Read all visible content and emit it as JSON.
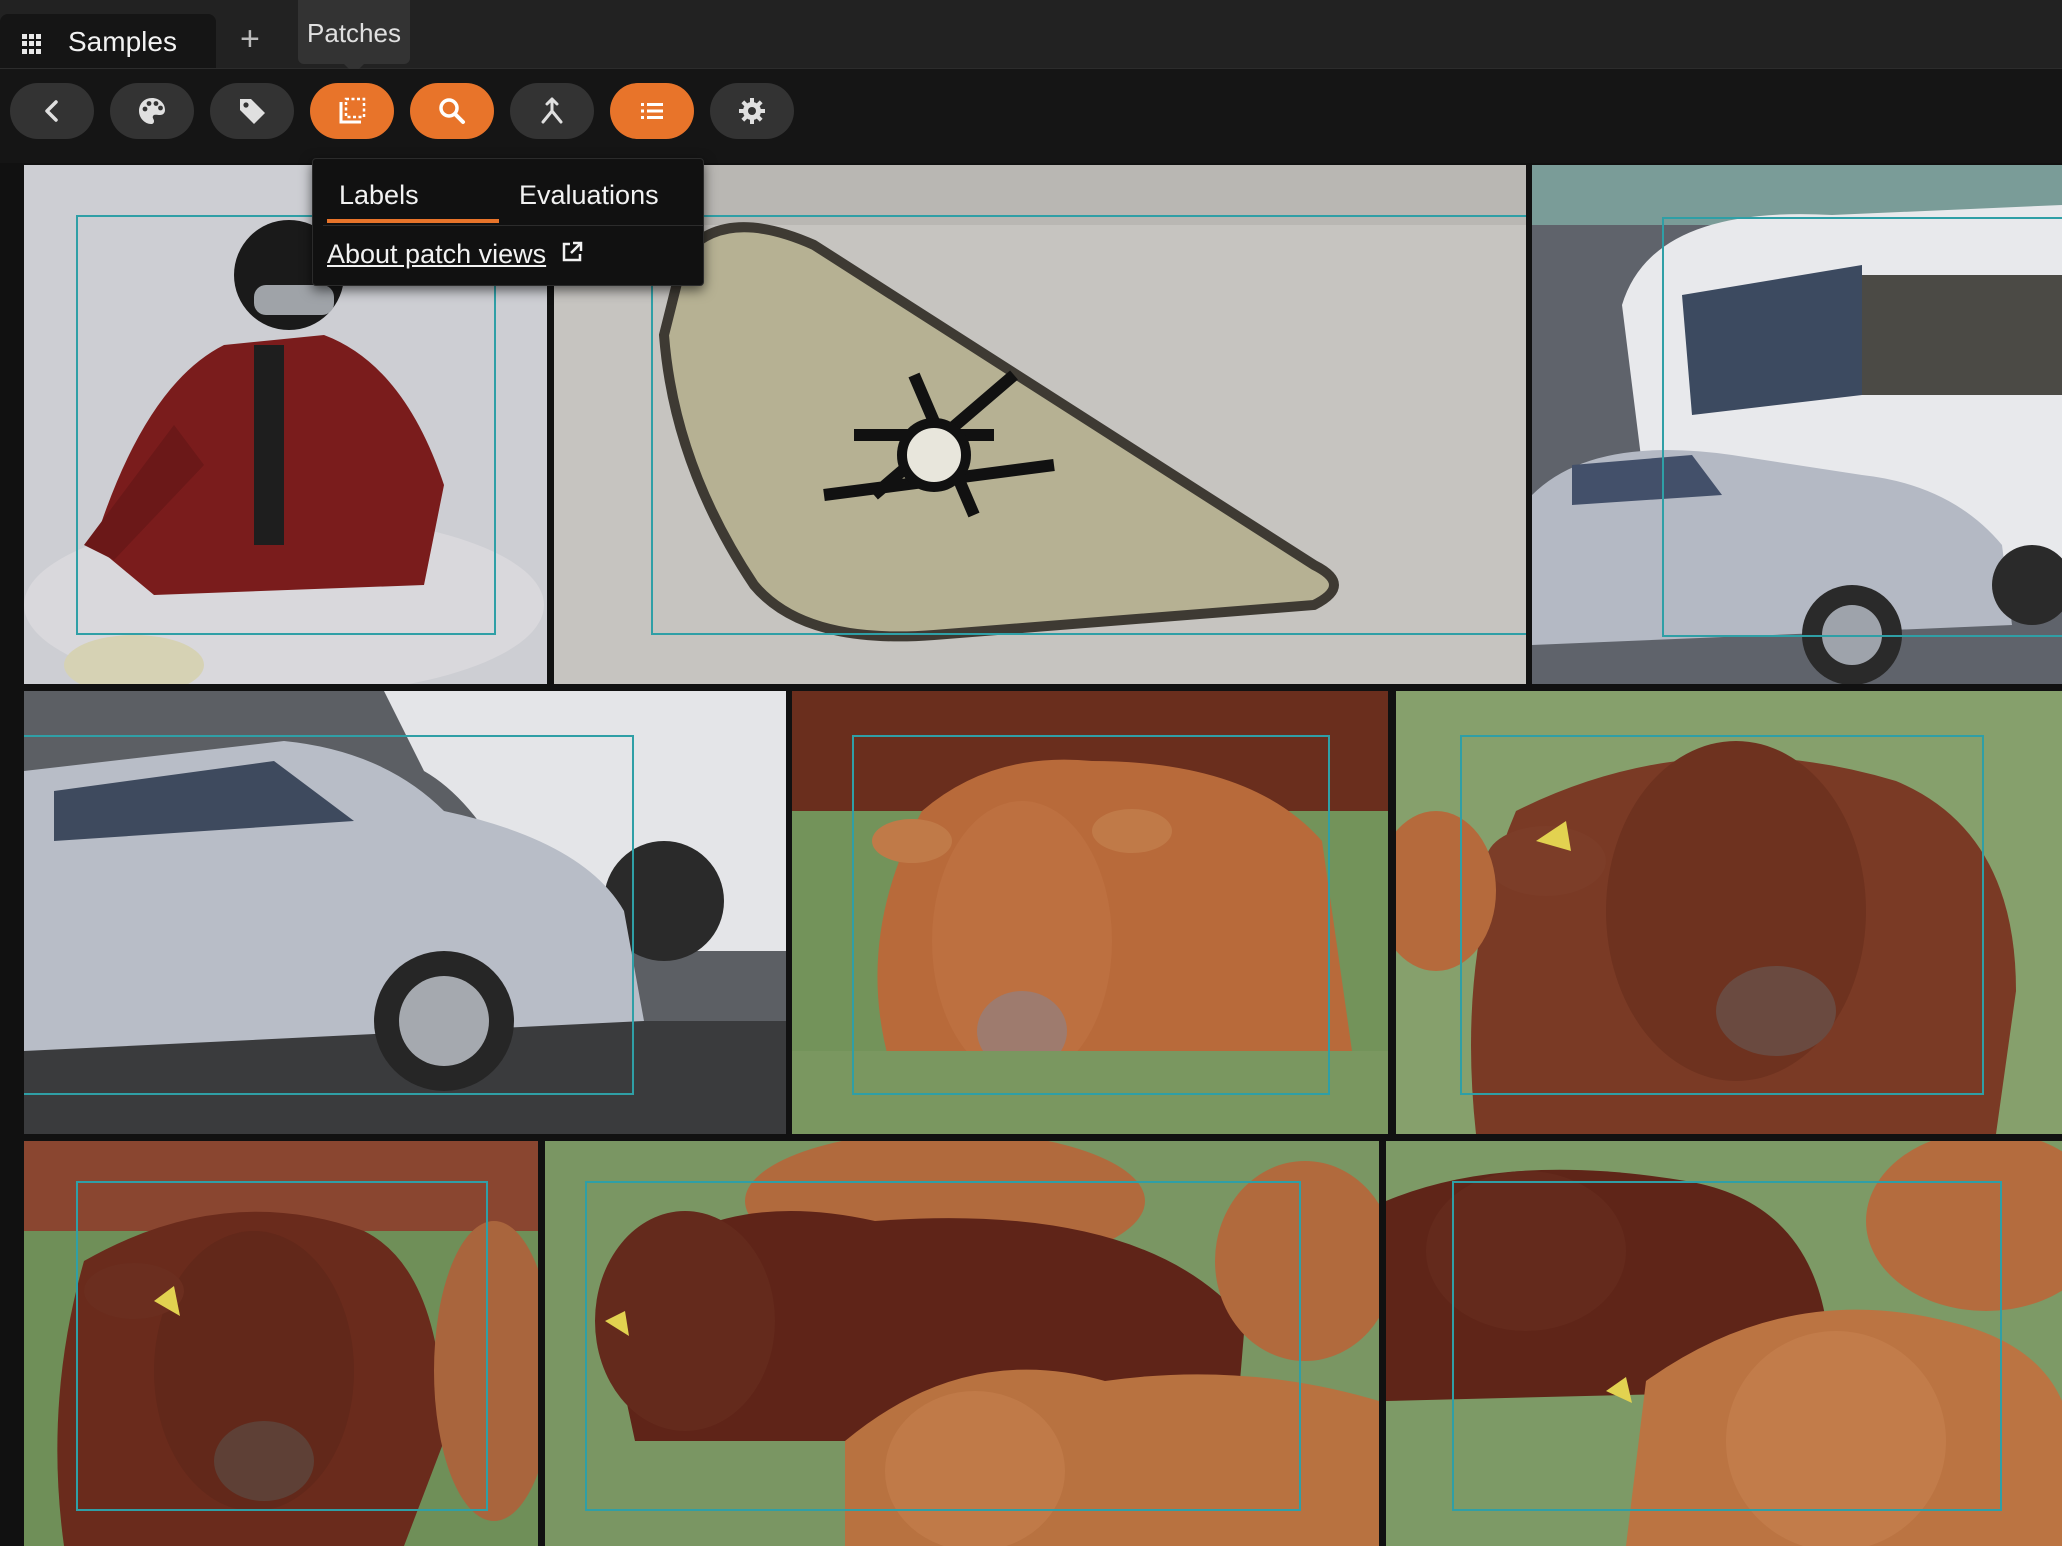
{
  "tab": {
    "label": "Samples",
    "icon": "apps-grid-icon"
  },
  "add_tab_label": "+",
  "tooltip": "Patches",
  "toolbar": {
    "buttons": [
      {
        "name": "back-button",
        "icon": "chevron-left-icon",
        "active": false
      },
      {
        "name": "color-by-button",
        "icon": "palette-icon",
        "active": false
      },
      {
        "name": "tag-button",
        "icon": "tag-icon",
        "active": false
      },
      {
        "name": "patches-button",
        "icon": "crop-patches-icon",
        "active": true
      },
      {
        "name": "similarity-search-button",
        "icon": "search-icon",
        "active": true
      },
      {
        "name": "merge-button",
        "icon": "merge-icon",
        "active": false
      },
      {
        "name": "list-view-button",
        "icon": "list-icon",
        "active": true
      },
      {
        "name": "settings-button",
        "icon": "gear-icon",
        "active": false
      }
    ],
    "accent": "#e8742a",
    "inactive": "#333333"
  },
  "popover": {
    "tabs": [
      "Labels",
      "Evaluations"
    ],
    "selected_tab": "Labels",
    "link": "About patch views",
    "link_icon": "external-link-icon"
  },
  "grid": {
    "tiles": [
      {
        "name": "snowboarder",
        "subject": "person in red jacket in snow"
      },
      {
        "name": "snowboard-closeup",
        "subject": "snowboard"
      },
      {
        "name": "bus-and-car",
        "subject": "bus"
      },
      {
        "name": "silver-car",
        "subject": "car"
      },
      {
        "name": "cow-lying-1",
        "subject": "cow"
      },
      {
        "name": "cow-closeup",
        "subject": "cow"
      },
      {
        "name": "cow-dark-brown",
        "subject": "cow"
      },
      {
        "name": "cow-herd",
        "subject": "cow"
      },
      {
        "name": "cow-herd-right",
        "subject": "cow"
      }
    ],
    "bbox_color": "#2f9fa6"
  }
}
